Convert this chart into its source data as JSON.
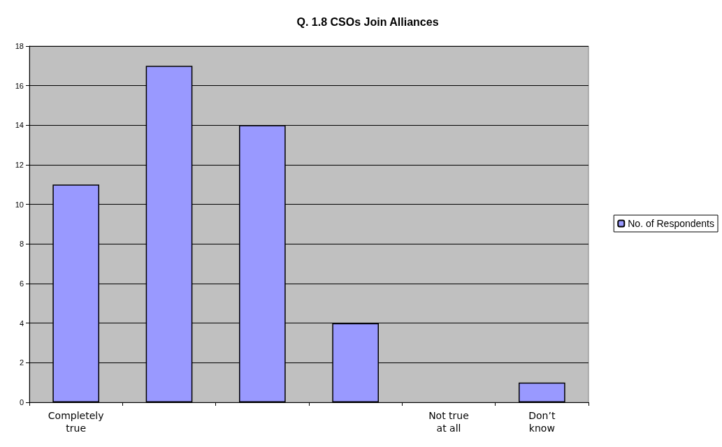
{
  "chart_data": {
    "type": "bar",
    "title": "Q. 1.8 CSOs Join Alliances",
    "categories": [
      "Completely true",
      null,
      null,
      null,
      "Not true at all",
      "Don’t know"
    ],
    "series": [
      {
        "name": "No. of Respondents",
        "color": "#9999ff",
        "values": [
          11,
          17,
          14,
          4,
          0,
          1
        ]
      }
    ],
    "ylim": [
      0,
      18
    ],
    "yticks": [
      0,
      2,
      4,
      6,
      8,
      10,
      12,
      14,
      16,
      18
    ],
    "grid": "y",
    "legend": "right"
  }
}
